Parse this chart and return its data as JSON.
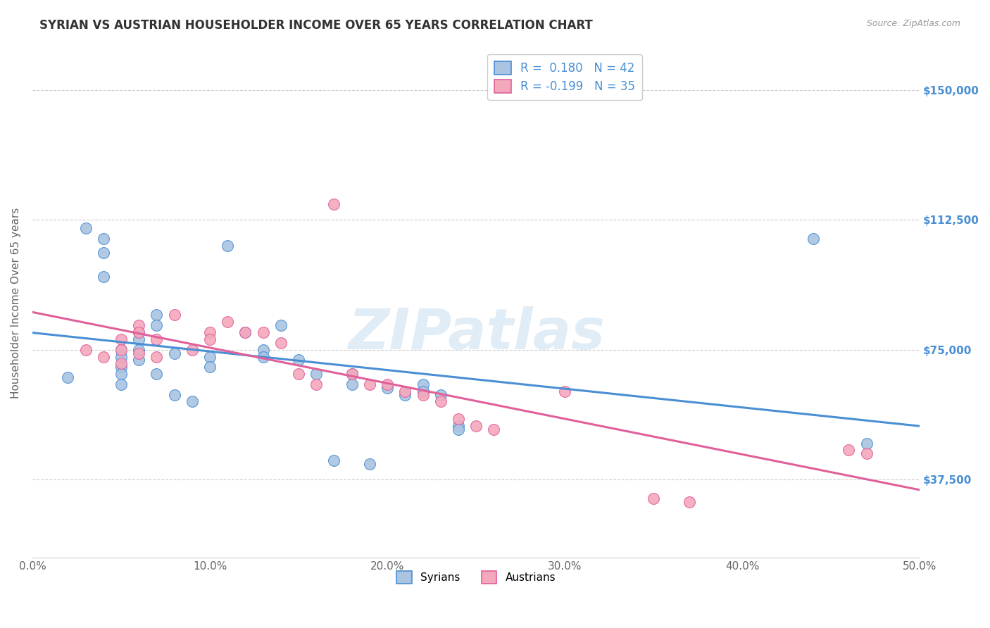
{
  "title": "SYRIAN VS AUSTRIAN HOUSEHOLDER INCOME OVER 65 YEARS CORRELATION CHART",
  "source": "Source: ZipAtlas.com",
  "ylabel": "Householder Income Over 65 years",
  "xlabel_ticks": [
    "0.0%",
    "10.0%",
    "20.0%",
    "30.0%",
    "40.0%",
    "50.0%"
  ],
  "xlabel_vals": [
    0.0,
    0.1,
    0.2,
    0.3,
    0.4,
    0.5
  ],
  "ytick_labels": [
    "$37,500",
    "$75,000",
    "$112,500",
    "$150,000"
  ],
  "ytick_vals": [
    37500,
    75000,
    112500,
    150000
  ],
  "xlim": [
    0.0,
    0.5
  ],
  "ylim": [
    15000,
    162000
  ],
  "syrians_R": 0.18,
  "syrians_N": 42,
  "austrians_R": -0.199,
  "austrians_N": 35,
  "syrian_color": "#aac4e2",
  "austrian_color": "#f4a8bc",
  "syrian_line_color": "#4a8fd4",
  "austrian_line_color": "#e0609a",
  "background_color": "#ffffff",
  "watermark": "ZIPatlas",
  "syrians_x": [
    0.02,
    0.03,
    0.04,
    0.04,
    0.04,
    0.05,
    0.05,
    0.05,
    0.05,
    0.05,
    0.06,
    0.06,
    0.06,
    0.06,
    0.07,
    0.07,
    0.07,
    0.08,
    0.08,
    0.09,
    0.1,
    0.1,
    0.11,
    0.12,
    0.13,
    0.13,
    0.14,
    0.15,
    0.16,
    0.17,
    0.18,
    0.18,
    0.19,
    0.2,
    0.21,
    0.22,
    0.22,
    0.23,
    0.24,
    0.24,
    0.44,
    0.47
  ],
  "syrians_y": [
    67000,
    110000,
    107000,
    103000,
    96000,
    75000,
    73000,
    70000,
    68000,
    65000,
    80000,
    78000,
    75000,
    72000,
    85000,
    82000,
    68000,
    74000,
    62000,
    60000,
    73000,
    70000,
    105000,
    80000,
    75000,
    73000,
    82000,
    72000,
    68000,
    43000,
    68000,
    65000,
    42000,
    64000,
    62000,
    65000,
    63000,
    62000,
    53000,
    52000,
    107000,
    48000
  ],
  "austrians_x": [
    0.03,
    0.04,
    0.05,
    0.05,
    0.05,
    0.06,
    0.06,
    0.06,
    0.07,
    0.07,
    0.08,
    0.09,
    0.1,
    0.1,
    0.11,
    0.12,
    0.13,
    0.14,
    0.15,
    0.16,
    0.17,
    0.18,
    0.19,
    0.2,
    0.21,
    0.22,
    0.23,
    0.24,
    0.25,
    0.26,
    0.3,
    0.35,
    0.37,
    0.46,
    0.47
  ],
  "austrians_y": [
    75000,
    73000,
    78000,
    75000,
    71000,
    82000,
    80000,
    74000,
    78000,
    73000,
    85000,
    75000,
    80000,
    78000,
    83000,
    80000,
    80000,
    77000,
    68000,
    65000,
    117000,
    68000,
    65000,
    65000,
    63000,
    62000,
    60000,
    55000,
    53000,
    52000,
    63000,
    32000,
    31000,
    46000,
    45000
  ]
}
